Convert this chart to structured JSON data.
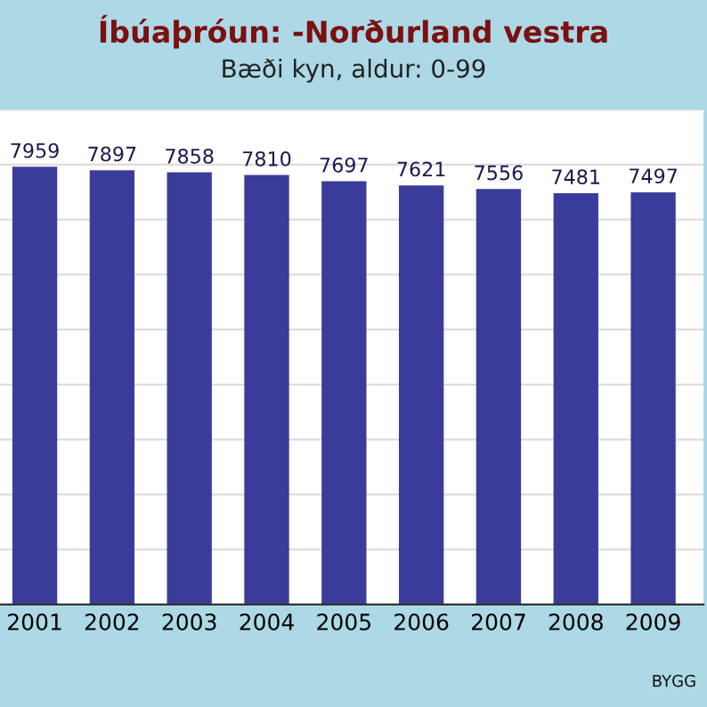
{
  "chart_data": {
    "type": "bar",
    "title": "Íbúaþróun: -Norðurland vestra",
    "subtitle": "Bæði kyn, aldur: 0-99",
    "categories": [
      "2001",
      "2002",
      "2003",
      "2004",
      "2005",
      "2006",
      "2007",
      "2008",
      "2009"
    ],
    "values": [
      7959,
      7897,
      7858,
      7810,
      7697,
      7621,
      7556,
      7481,
      7497
    ],
    "color": "#3a3c9a",
    "data_labels": true,
    "grid": "y",
    "tick_labels": "x",
    "ylim": [
      0,
      9000
    ],
    "yticks": [
      {
        "value": 0,
        "label": null
      },
      {
        "value": 1000,
        "label": null
      },
      {
        "value": 2000,
        "label": null
      },
      {
        "value": 3000,
        "label": null
      },
      {
        "value": 4000,
        "label": null
      },
      {
        "value": 5000,
        "label": null
      },
      {
        "value": 6000,
        "label": null
      },
      {
        "value": 7000,
        "label": null
      },
      {
        "value": 8000,
        "label": null
      },
      {
        "value": 9000,
        "label": null
      }
    ],
    "annotations": [
      "BYGG"
    ]
  }
}
